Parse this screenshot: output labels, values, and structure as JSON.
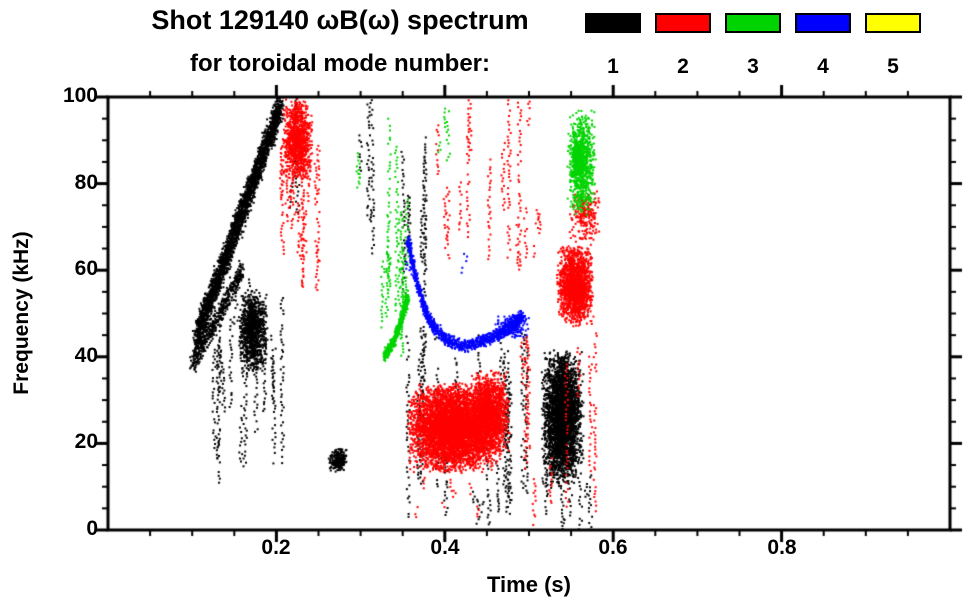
{
  "title": "Shot 129140 ωB(ω) spectrum",
  "subtitle": "for toroidal mode number:",
  "chart_data": {
    "type": "scatter",
    "title": "Shot 129140 ωB(ω) spectrum for toroidal mode number 1-5",
    "xlabel": "Time (s)",
    "ylabel": "Frequency (kHz)",
    "xlim": [
      0,
      1.0
    ],
    "ylim": [
      0,
      100
    ],
    "grid": false,
    "legend_position": "top-right",
    "x_major_ticks": [
      0.2,
      0.4,
      0.6,
      0.8
    ],
    "x_tick_labels": [
      "0.2",
      "0.4",
      "0.6",
      "0.8"
    ],
    "x_minor_step": 0.05,
    "y_major_ticks": [
      0,
      20,
      40,
      60,
      80,
      100
    ],
    "y_tick_labels": [
      "0",
      "20",
      "40",
      "60",
      "80",
      "100"
    ],
    "y_minor_step": 5,
    "legend": [
      {
        "label": "1",
        "color": "#000000"
      },
      {
        "label": "2",
        "color": "#ff0000"
      },
      {
        "label": "3",
        "color": "#00d400"
      },
      {
        "label": "4",
        "color": "#0000ff"
      },
      {
        "label": "5",
        "color": "#ffff00"
      }
    ],
    "series": [
      {
        "name": "n=1",
        "color": "#000000",
        "features": [
          {
            "type": "band",
            "x1": 0.105,
            "y1": 44,
            "x2": 0.205,
            "y2": 98,
            "sx": 0.005,
            "sy": 4,
            "count": 2600
          },
          {
            "type": "band",
            "x1": 0.1,
            "y1": 38,
            "x2": 0.16,
            "y2": 60,
            "sx": 0.004,
            "sy": 3,
            "count": 450
          },
          {
            "type": "streaks",
            "x0": 0.125,
            "x1": 0.21,
            "y0": 8,
            "y1": 58,
            "n": 20
          },
          {
            "type": "blob",
            "x0": 0.155,
            "x1": 0.19,
            "y0": 36,
            "y1": 56,
            "count": 900
          },
          {
            "type": "blob",
            "x0": 0.262,
            "x1": 0.284,
            "y0": 13,
            "y1": 19,
            "count": 220
          },
          {
            "type": "streaks",
            "x0": 0.215,
            "x1": 0.24,
            "y0": 72,
            "y1": 100,
            "n": 6
          },
          {
            "type": "streaks",
            "x0": 0.295,
            "x1": 0.32,
            "y0": 62,
            "y1": 100,
            "n": 5
          },
          {
            "type": "streaks",
            "x0": 0.345,
            "x1": 0.385,
            "y0": 50,
            "y1": 100,
            "n": 7
          },
          {
            "type": "streaks",
            "x0": 0.355,
            "x1": 0.52,
            "y0": 2,
            "y1": 48,
            "n": 30
          },
          {
            "type": "blob",
            "x0": 0.515,
            "x1": 0.565,
            "y0": 10,
            "y1": 42,
            "count": 3000
          },
          {
            "type": "streaks",
            "x0": 0.52,
            "x1": 0.575,
            "y0": 0,
            "y1": 14,
            "n": 8
          },
          {
            "type": "streaks",
            "x0": 0.43,
            "x1": 0.47,
            "y0": 0,
            "y1": 10,
            "n": 5
          }
        ]
      },
      {
        "name": "n=2",
        "color": "#ff0000",
        "features": [
          {
            "type": "streaks",
            "x0": 0.205,
            "x1": 0.25,
            "y0": 55,
            "y1": 100,
            "n": 18
          },
          {
            "type": "blob",
            "x0": 0.207,
            "x1": 0.243,
            "y0": 80,
            "y1": 100,
            "count": 900
          },
          {
            "type": "streaks",
            "x0": 0.39,
            "x1": 0.5,
            "y0": 55,
            "y1": 100,
            "n": 13
          },
          {
            "type": "blob",
            "x0": 0.355,
            "x1": 0.47,
            "y0": 13,
            "y1": 34,
            "count": 5200
          },
          {
            "type": "blob",
            "x0": 0.43,
            "x1": 0.478,
            "y0": 17,
            "y1": 37,
            "count": 1300
          },
          {
            "type": "streaks",
            "x0": 0.36,
            "x1": 0.47,
            "y0": 2,
            "y1": 14,
            "n": 7
          },
          {
            "type": "blob",
            "x0": 0.533,
            "x1": 0.577,
            "y0": 47,
            "y1": 66,
            "count": 1600
          },
          {
            "type": "streaks",
            "x0": 0.47,
            "x1": 0.58,
            "y0": 0,
            "y1": 46,
            "n": 11
          },
          {
            "type": "blob",
            "x0": 0.548,
            "x1": 0.585,
            "y0": 66,
            "y1": 80,
            "count": 220
          },
          {
            "type": "streaks",
            "x0": 0.5,
            "x1": 0.52,
            "y0": 58,
            "y1": 76,
            "n": 3
          }
        ]
      },
      {
        "name": "n=3",
        "color": "#00d400",
        "features": [
          {
            "type": "streaks",
            "x0": 0.325,
            "x1": 0.358,
            "y0": 38,
            "y1": 100,
            "n": 9
          },
          {
            "type": "curve",
            "pts": [
              [
                0.328,
                40
              ],
              [
                0.338,
                43
              ],
              [
                0.348,
                48
              ],
              [
                0.356,
                54
              ]
            ],
            "s": 1.5,
            "count": 450
          },
          {
            "type": "streaks",
            "x0": 0.39,
            "x1": 0.412,
            "y0": 84,
            "y1": 100,
            "n": 3
          },
          {
            "type": "blob",
            "x0": 0.545,
            "x1": 0.58,
            "y0": 72,
            "y1": 97,
            "count": 800
          },
          {
            "type": "blob",
            "x0": 0.552,
            "x1": 0.564,
            "y0": 82,
            "y1": 90,
            "count": 600
          },
          {
            "type": "streaks",
            "x0": 0.29,
            "x1": 0.3,
            "y0": 75,
            "y1": 100,
            "n": 2
          }
        ]
      },
      {
        "name": "n=4",
        "color": "#0000ff",
        "features": [
          {
            "type": "curve",
            "pts": [
              [
                0.356,
                67
              ],
              [
                0.366,
                58
              ],
              [
                0.376,
                51
              ],
              [
                0.388,
                46.5
              ],
              [
                0.405,
                43.5
              ],
              [
                0.425,
                42.5
              ],
              [
                0.445,
                43.5
              ],
              [
                0.462,
                45
              ],
              [
                0.478,
                47
              ],
              [
                0.492,
                49.5
              ]
            ],
            "s": 1.7,
            "count": 1200
          },
          {
            "type": "streaks",
            "x0": 0.352,
            "x1": 0.36,
            "y0": 55,
            "y1": 68,
            "n": 2
          },
          {
            "type": "streaks",
            "x0": 0.42,
            "x1": 0.432,
            "y0": 58,
            "y1": 67,
            "n": 2
          },
          {
            "type": "blob",
            "x0": 0.46,
            "x1": 0.5,
            "y0": 44,
            "y1": 50,
            "count": 150
          }
        ]
      },
      {
        "name": "n=5",
        "color": "#ffff00",
        "features": []
      }
    ]
  }
}
